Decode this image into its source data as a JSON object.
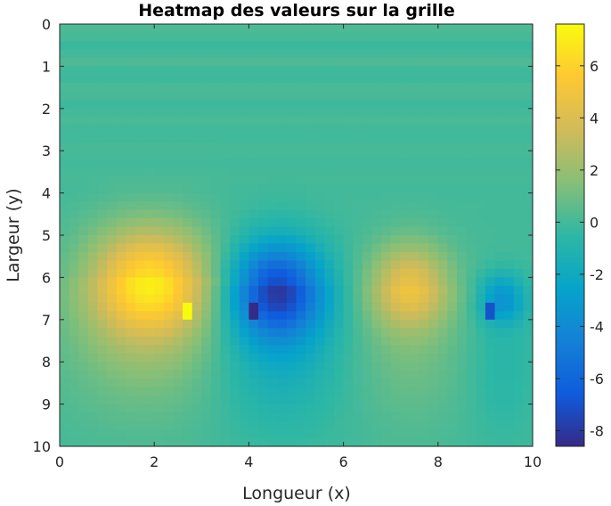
{
  "chart_data": {
    "type": "heatmap",
    "title": "Heatmap des valeurs sur la grille",
    "xlabel": "Longueur (x)",
    "ylabel": "Largeur (y)",
    "xlim": [
      0,
      10
    ],
    "ylim": [
      0,
      10
    ],
    "y_reversed": true,
    "x_ticks": [
      "0",
      "2",
      "4",
      "6",
      "8",
      "10"
    ],
    "y_ticks": [
      "0",
      "1",
      "2",
      "3",
      "4",
      "5",
      "6",
      "7",
      "8",
      "9",
      "10"
    ],
    "grid_resolution": [
      50,
      50
    ],
    "colormap": "parula",
    "colorbar": {
      "range": [
        -8.6,
        7.6
      ],
      "ticks": [
        "6",
        "4",
        "2",
        "0",
        "-2",
        "-4",
        "-6",
        "-8"
      ],
      "placement": "right"
    },
    "colors": {
      "background": "#ffffff",
      "axis": "#262626",
      "baseline": "#1fb3ab"
    },
    "features": [
      {
        "x": 1.9,
        "y": 6.1,
        "amp": 6.5,
        "sx": 0.9,
        "sy": 0.9,
        "sign": "positive"
      },
      {
        "x": 4.6,
        "y": 6.3,
        "amp": -7.5,
        "sx": 0.7,
        "sy": 0.8,
        "sign": "negative"
      },
      {
        "x": 7.4,
        "y": 6.2,
        "amp": 4.5,
        "sx": 0.6,
        "sy": 0.7,
        "sign": "positive"
      },
      {
        "x": 9.35,
        "y": 6.5,
        "amp": -3.5,
        "sx": 0.35,
        "sy": 0.4,
        "sign": "negative"
      }
    ],
    "peak_values": [
      {
        "x": 2.7,
        "y": 6.8,
        "value": 7.6
      },
      {
        "x": 4.1,
        "y": 6.8,
        "value": -8.6
      },
      {
        "x": 9.1,
        "y": 6.8,
        "value": -7.0
      }
    ]
  }
}
